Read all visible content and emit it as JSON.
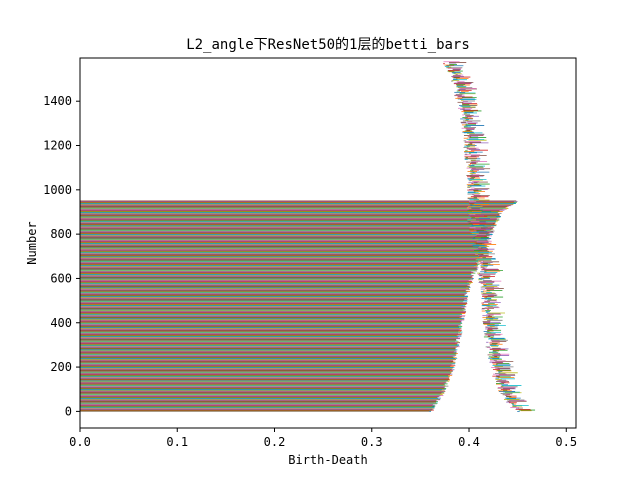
{
  "chart_data": {
    "type": "bar",
    "orientation": "horizontal",
    "title": "L2_angle下ResNet50的1层的betti_bars",
    "xlabel": "Birth-Death",
    "ylabel": "Number",
    "xlim": [
      0.0,
      0.51
    ],
    "ylim": [
      -75,
      1595
    ],
    "xticks": [
      "0.0",
      "0.1",
      "0.2",
      "0.3",
      "0.4",
      "0.5"
    ],
    "yticks": [
      "0",
      "200",
      "400",
      "600",
      "800",
      "1000",
      "1200",
      "1400"
    ],
    "grid": false,
    "legend": "none",
    "bar_colors": [
      "#1f77b4",
      "#ff7f0e",
      "#2ca02c",
      "#d62728",
      "#9467bd",
      "#8c564b",
      "#e377c2",
      "#7f7f7f",
      "#bcbd22",
      "#17becf"
    ],
    "bar_count": 1580,
    "long_bars": {
      "index_range": [
        0,
        950
      ],
      "birth": 0.0,
      "death_profile": [
        [
          0,
          0.36
        ],
        [
          100,
          0.375
        ],
        [
          200,
          0.383
        ],
        [
          300,
          0.388
        ],
        [
          400,
          0.392
        ],
        [
          500,
          0.396
        ],
        [
          600,
          0.402
        ],
        [
          700,
          0.412
        ],
        [
          800,
          0.422
        ],
        [
          900,
          0.432
        ],
        [
          950,
          0.45
        ]
      ]
    },
    "short_bars": {
      "index_range": [
        0,
        1580
      ],
      "birth_profile": [
        [
          0,
          0.45
        ],
        [
          50,
          0.44
        ],
        [
          100,
          0.432
        ],
        [
          200,
          0.425
        ],
        [
          300,
          0.42
        ],
        [
          400,
          0.418
        ],
        [
          500,
          0.416
        ],
        [
          600,
          0.413
        ],
        [
          700,
          0.41
        ],
        [
          800,
          0.405
        ],
        [
          900,
          0.4
        ],
        [
          1000,
          0.402
        ],
        [
          1100,
          0.4
        ],
        [
          1200,
          0.398
        ],
        [
          1300,
          0.395
        ],
        [
          1400,
          0.39
        ],
        [
          1500,
          0.385
        ],
        [
          1580,
          0.375
        ]
      ],
      "length_range": [
        0.002,
        0.02
      ]
    }
  }
}
